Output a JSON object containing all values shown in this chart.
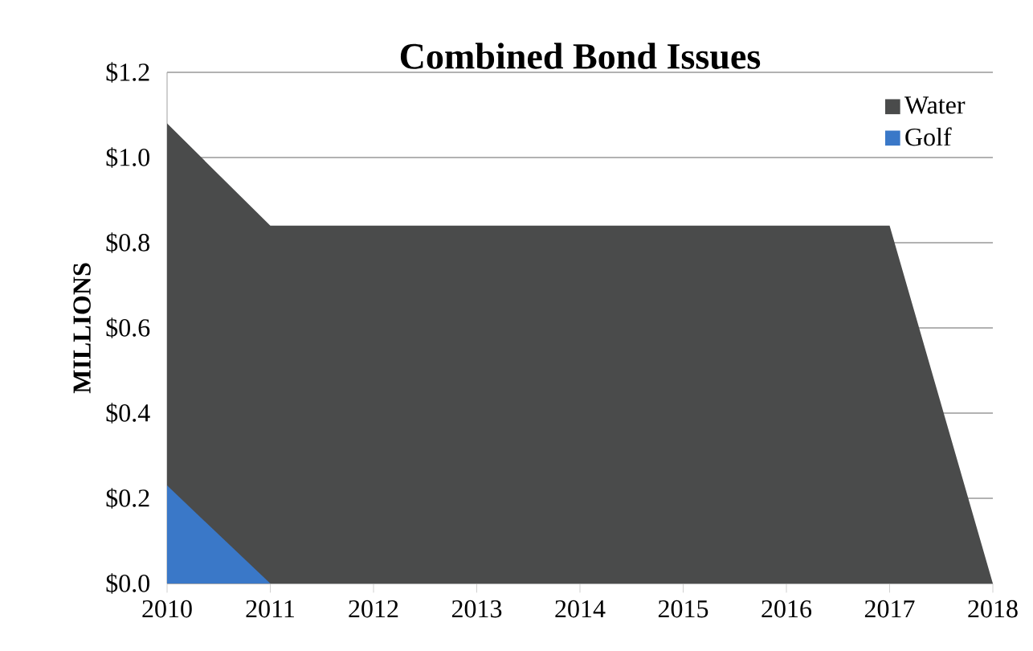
{
  "chart_data": {
    "type": "area",
    "title": "Combined Bond Issues",
    "ylabel": "MILLIONS",
    "categories": [
      "2010",
      "2011",
      "2012",
      "2013",
      "2014",
      "2015",
      "2016",
      "2017",
      "2018"
    ],
    "series": [
      {
        "name": "Water",
        "color": "#4a4b4b",
        "values": [
          1.08,
          0.84,
          0.84,
          0.84,
          0.84,
          0.84,
          0.84,
          0.84,
          0
        ]
      },
      {
        "name": "Golf",
        "color": "#3a78c8",
        "values": [
          0.23,
          0,
          0,
          0,
          0,
          0,
          0,
          0,
          0
        ]
      }
    ],
    "ylim": [
      0,
      1.2
    ],
    "yticks": [
      {
        "value": 0,
        "label": "$0.0"
      },
      {
        "value": 0.2,
        "label": "$0.2"
      },
      {
        "value": 0.4,
        "label": "$0.4"
      },
      {
        "value": 0.6,
        "label": "$0.6"
      },
      {
        "value": 0.8,
        "label": "$0.8"
      },
      {
        "value": 1.0,
        "label": "$1.0"
      },
      {
        "value": 1.2,
        "label": "$1.2"
      }
    ],
    "grid": "y",
    "legend": "top right"
  }
}
